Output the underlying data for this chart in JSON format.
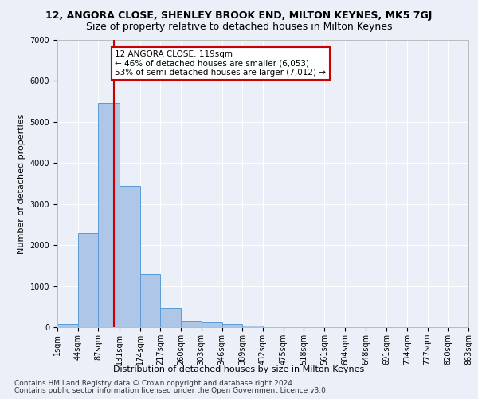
{
  "title1": "12, ANGORA CLOSE, SHENLEY BROOK END, MILTON KEYNES, MK5 7GJ",
  "title2": "Size of property relative to detached houses in Milton Keynes",
  "xlabel": "Distribution of detached houses by size in Milton Keynes",
  "ylabel": "Number of detached properties",
  "footer1": "Contains HM Land Registry data © Crown copyright and database right 2024.",
  "footer2": "Contains public sector information licensed under the Open Government Licence v3.0.",
  "property_size": 119,
  "annotation_text": "12 ANGORA CLOSE: 119sqm\n← 46% of detached houses are smaller (6,053)\n53% of semi-detached houses are larger (7,012) →",
  "bar_color": "#aec6e8",
  "bar_edge_color": "#5b9bd5",
  "vline_color": "#cc0000",
  "annotation_box_color": "#cc0000",
  "bin_edges": [
    1,
    44,
    87,
    131,
    174,
    217,
    260,
    303,
    346,
    389,
    432,
    475,
    518,
    561,
    604,
    648,
    691,
    734,
    777,
    820,
    863
  ],
  "bin_counts": [
    75,
    2290,
    5470,
    3450,
    1310,
    470,
    165,
    110,
    75,
    45,
    0,
    0,
    0,
    0,
    0,
    0,
    0,
    0,
    0,
    0
  ],
  "ylim": [
    0,
    7000
  ],
  "yticks": [
    0,
    1000,
    2000,
    3000,
    4000,
    5000,
    6000,
    7000
  ],
  "background_color": "#eaeff8",
  "grid_color": "#ffffff",
  "title1_fontsize": 9,
  "title2_fontsize": 9,
  "axis_label_fontsize": 8,
  "tick_fontsize": 7,
  "footer_fontsize": 6.5,
  "annotation_fontsize": 7.5
}
